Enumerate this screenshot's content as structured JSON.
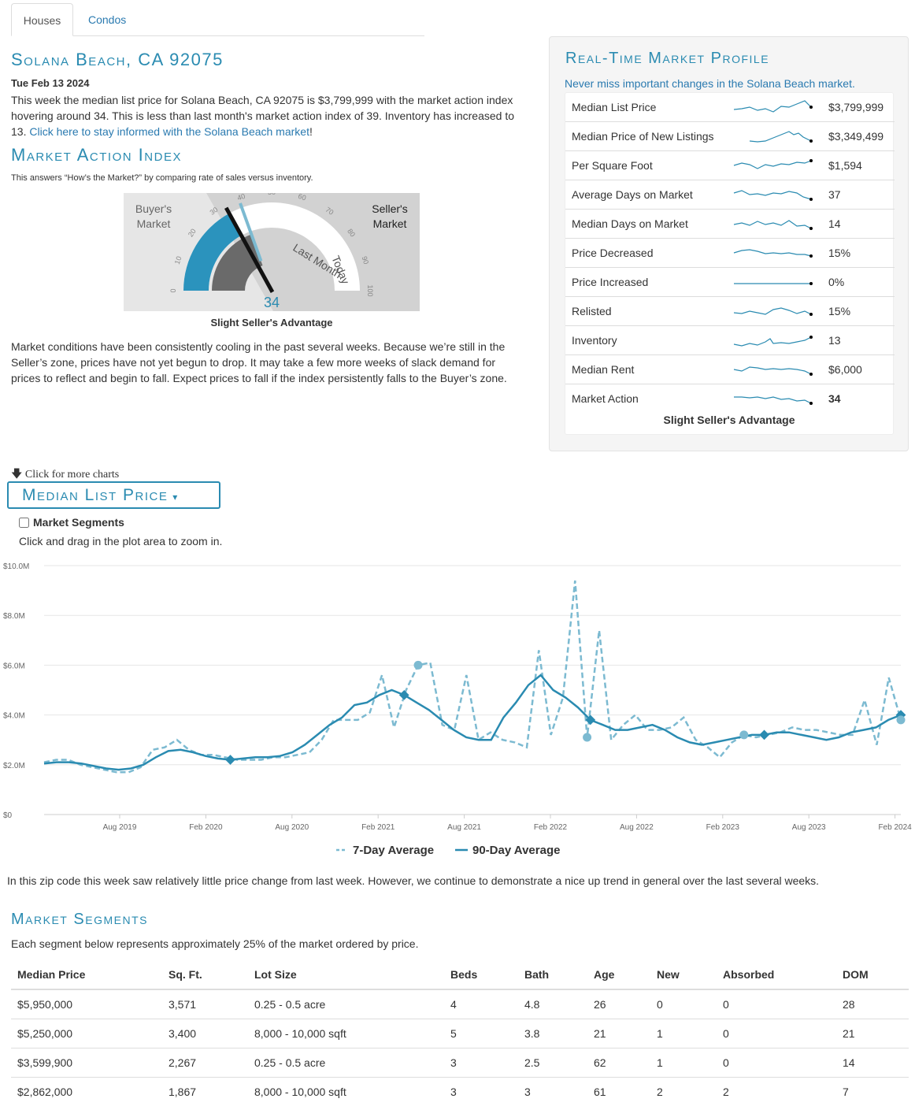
{
  "tabs": [
    {
      "label": "Houses"
    },
    {
      "label": "Condos"
    }
  ],
  "location_title": "Solana Beach, CA 92075",
  "date": "Tue Feb 13 2024",
  "summary": {
    "text": "This week the median list price for Solana Beach, CA 92075 is $3,799,999 with the market action index hovering around 34. This is less than last month's market action index of 39. Inventory has increased to 13.",
    "link": "Click here to stay informed with the Solana Beach market",
    "end": "!"
  },
  "mai": {
    "title": "Market Action Index",
    "subtitle": "This answers “How’s the Market?” by comparing rate of sales versus inventory.",
    "value": 34,
    "last_month_value": 39,
    "buyers_label_1": "Buyer's",
    "buyers_label_2": "Market",
    "sellers_label_1": "Seller's",
    "sellers_label_2": "Market",
    "inner_label_1": "Last Month",
    "inner_label_2": "Today",
    "ticks": [
      "0",
      "10",
      "20",
      "30",
      "40",
      "50",
      "60",
      "70",
      "80",
      "90",
      "100"
    ],
    "verdict": "Slight Seller's Advantage",
    "commentary": "Market conditions have been consistently cooling in the past several weeks. Because we’re still in the Seller’s zone, prices have not yet begun to drop. It may take a few more weeks of slack demand for prices to reflect and begin to fall. Expect prices to fall if the index persistently falls to the Buyer’s zone."
  },
  "profile": {
    "title": "Real-Time Market Profile",
    "subtitle": "Never miss important changes in the Solana Beach market.",
    "rows": [
      {
        "label": "Median List Price",
        "value": "$3,799,999"
      },
      {
        "label": "Median Price of New Listings",
        "value": "$3,349,499"
      },
      {
        "label": "Per Square Foot",
        "value": "$1,594"
      },
      {
        "label": "Average Days on Market",
        "value": "37"
      },
      {
        "label": "Median Days on Market",
        "value": "14"
      },
      {
        "label": "Price Decreased",
        "value": "15%"
      },
      {
        "label": "Price Increased",
        "value": "0%"
      },
      {
        "label": "Relisted",
        "value": "15%"
      },
      {
        "label": "Inventory",
        "value": "13"
      },
      {
        "label": "Median Rent",
        "value": "$6,000"
      },
      {
        "label": "Market Action",
        "value": "34"
      }
    ],
    "footer": "Slight Seller's Advantage"
  },
  "chart_section": {
    "more_label": "Click for more charts",
    "dropdown_label": "Median List Price",
    "segments_checkbox": "Market Segments",
    "zoom_hint": "Click and drag in the plot area to zoom in."
  },
  "chart_data": {
    "type": "line",
    "title": "Median List Price",
    "ylim": [
      0,
      10000000
    ],
    "y_ticks": [
      "$0",
      "$2.0M",
      "$4.0M",
      "$6.0M",
      "$8.0M",
      "$10.0M"
    ],
    "x_ticks": [
      "Aug 2019",
      "Feb 2020",
      "Aug 2020",
      "Feb 2021",
      "Aug 2021",
      "Feb 2022",
      "Aug 2022",
      "Feb 2023",
      "Aug 2023",
      "Feb 2024"
    ],
    "x_range": [
      "Feb 2019",
      "Feb 2024"
    ],
    "series": [
      {
        "name": "7-Day Average",
        "style": "dashed",
        "color": "#7cbad1",
        "values": [
          2.1,
          2.2,
          2.2,
          2.0,
          1.9,
          1.8,
          1.7,
          1.7,
          1.9,
          2.6,
          2.7,
          3.0,
          2.6,
          2.4,
          2.4,
          2.3,
          2.2,
          2.2,
          2.2,
          2.3,
          2.3,
          2.4,
          2.5,
          3.0,
          3.8,
          3.8,
          3.8,
          4.1,
          5.6,
          3.5,
          5.0,
          6.0,
          6.1,
          3.6,
          3.4,
          5.6,
          3.0,
          3.3,
          3.0,
          2.9,
          2.7,
          6.6,
          3.2,
          4.7,
          9.4,
          3.1,
          7.4,
          3.0,
          3.6,
          4.0,
          3.4,
          3.4,
          3.5,
          3.9,
          3.0,
          2.7,
          2.3,
          2.9,
          3.2,
          3.1,
          3.2,
          3.3,
          3.5,
          3.4,
          3.4,
          3.3,
          3.2,
          3.2,
          4.6,
          2.8,
          5.5,
          3.8
        ]
      },
      {
        "name": "90-Day Average",
        "style": "solid",
        "color": "#2a8bb1",
        "values": [
          2.05,
          2.1,
          2.1,
          2.05,
          1.95,
          1.85,
          1.8,
          1.85,
          2.0,
          2.3,
          2.55,
          2.6,
          2.5,
          2.35,
          2.25,
          2.2,
          2.25,
          2.3,
          2.3,
          2.35,
          2.5,
          2.8,
          3.2,
          3.6,
          3.9,
          4.4,
          4.5,
          4.8,
          5.0,
          4.8,
          4.5,
          4.2,
          3.8,
          3.4,
          3.1,
          3.0,
          3.0,
          3.9,
          4.5,
          5.2,
          5.6,
          5.0,
          4.7,
          4.3,
          3.8,
          3.6,
          3.4,
          3.4,
          3.5,
          3.6,
          3.4,
          3.1,
          2.9,
          2.8,
          2.9,
          3.0,
          3.1,
          3.2,
          3.2,
          3.3,
          3.3,
          3.2,
          3.1,
          3.0,
          3.1,
          3.3,
          3.4,
          3.5,
          3.8,
          4.0
        ]
      }
    ]
  },
  "chart_commentary": "In this zip code this week saw relatively little price change from last week. However, we continue to demonstrate a nice up trend in general over the last several weeks.",
  "segments": {
    "title": "Market Segments",
    "subtitle": "Each segment below represents approximately 25% of the market ordered by price.",
    "headers": [
      "Median Price",
      "Sq. Ft.",
      "Lot Size",
      "Beds",
      "Bath",
      "Age",
      "New",
      "Absorbed",
      "DOM"
    ],
    "rows": [
      [
        "$5,950,000",
        "3,571",
        "0.25 - 0.5 acre",
        "4",
        "4.8",
        "26",
        "0",
        "0",
        "28"
      ],
      [
        "$5,250,000",
        "3,400",
        "8,000 - 10,000 sqft",
        "5",
        "3.8",
        "21",
        "1",
        "0",
        "21"
      ],
      [
        "$3,599,900",
        "2,267",
        "0.25 - 0.5 acre",
        "3",
        "2.5",
        "62",
        "1",
        "0",
        "14"
      ],
      [
        "$2,862,000",
        "1,867",
        "8,000 - 10,000 sqft",
        "3",
        "3",
        "61",
        "2",
        "2",
        "7"
      ]
    ]
  },
  "colors": {
    "accent": "#2a8bb1",
    "light": "#7cbad1",
    "link": "#2a7ab0"
  }
}
